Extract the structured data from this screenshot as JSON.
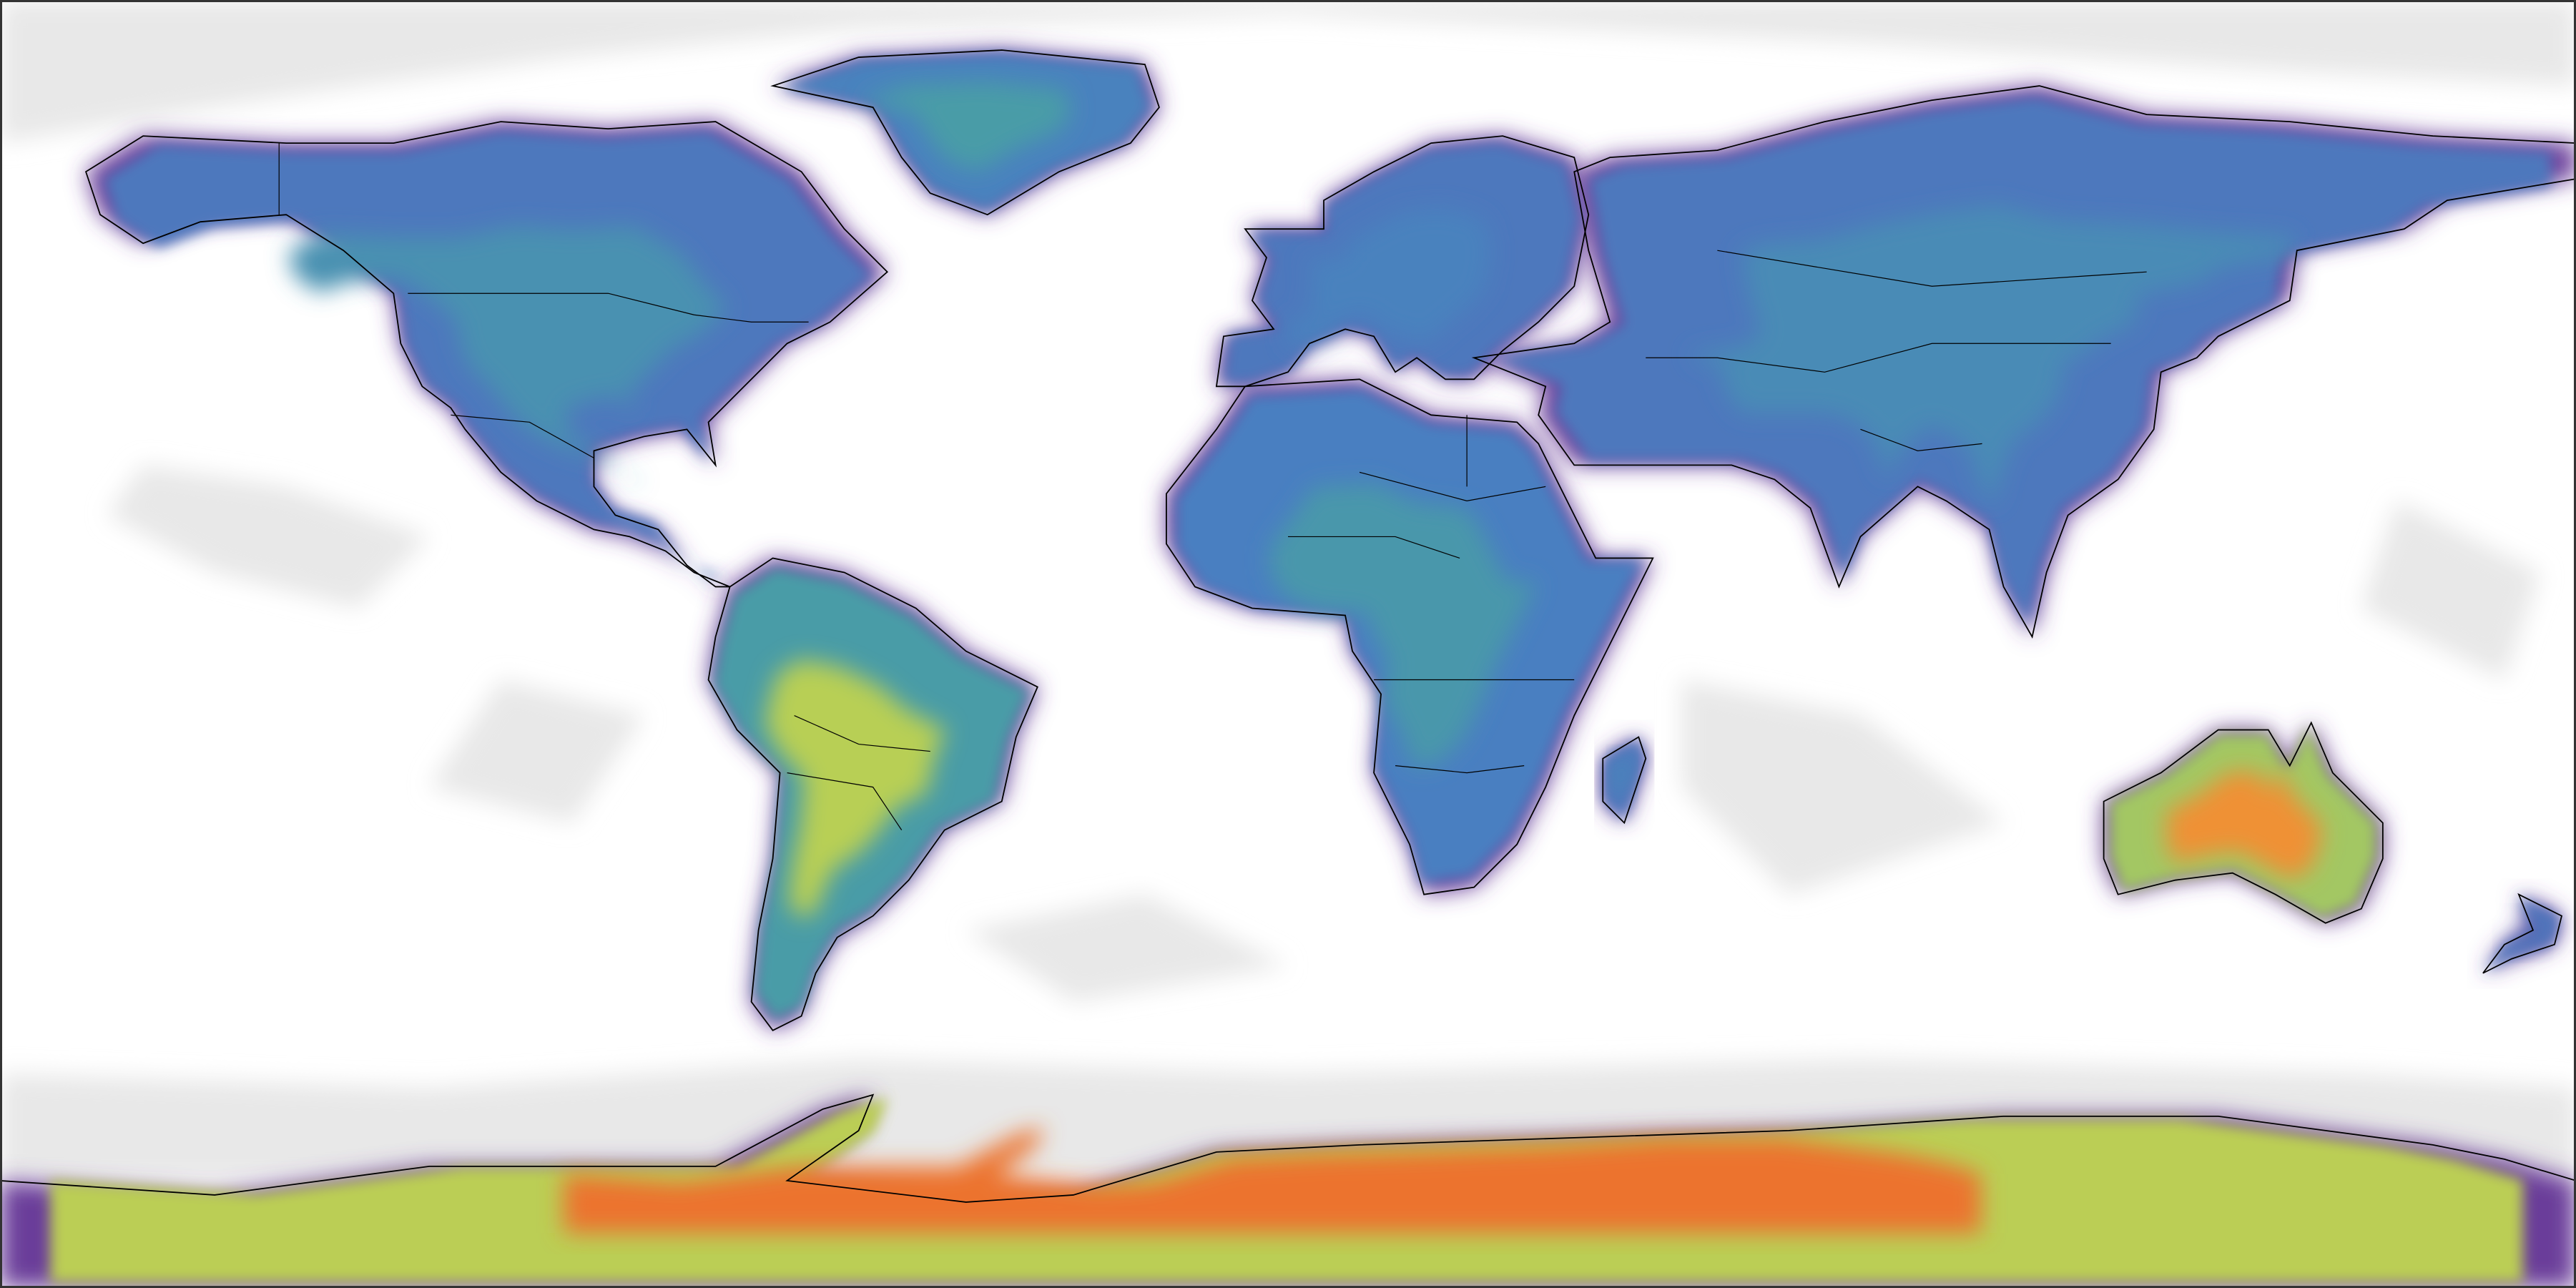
{
  "map": {
    "projection": "equirectangular",
    "longitude_range": [
      -180,
      180
    ],
    "latitude_range": [
      -90,
      90
    ],
    "background_color": "#ffffff",
    "frame_color": "#333333",
    "coastline_color": "#000000",
    "nodata_color": "#e8e8e8",
    "colormap": [
      "#6a3d9a",
      "#4a7fc1",
      "#4aa3a0",
      "#b8cf55",
      "#f0c240",
      "#ee7a2e",
      "#d62f22"
    ],
    "regions": [
      {
        "name": "north-america",
        "level": 0.25
      },
      {
        "name": "greenland",
        "level": 0.3
      },
      {
        "name": "south-america",
        "level": 0.5
      },
      {
        "name": "europe",
        "level": 0.18
      },
      {
        "name": "africa",
        "level": 0.28
      },
      {
        "name": "asia",
        "level": 0.22
      },
      {
        "name": "australia",
        "level": 0.78
      },
      {
        "name": "new-zealand",
        "level": 0.1
      },
      {
        "name": "madagascar",
        "level": 0.2
      },
      {
        "name": "antarctica",
        "level": 0.85
      }
    ]
  }
}
